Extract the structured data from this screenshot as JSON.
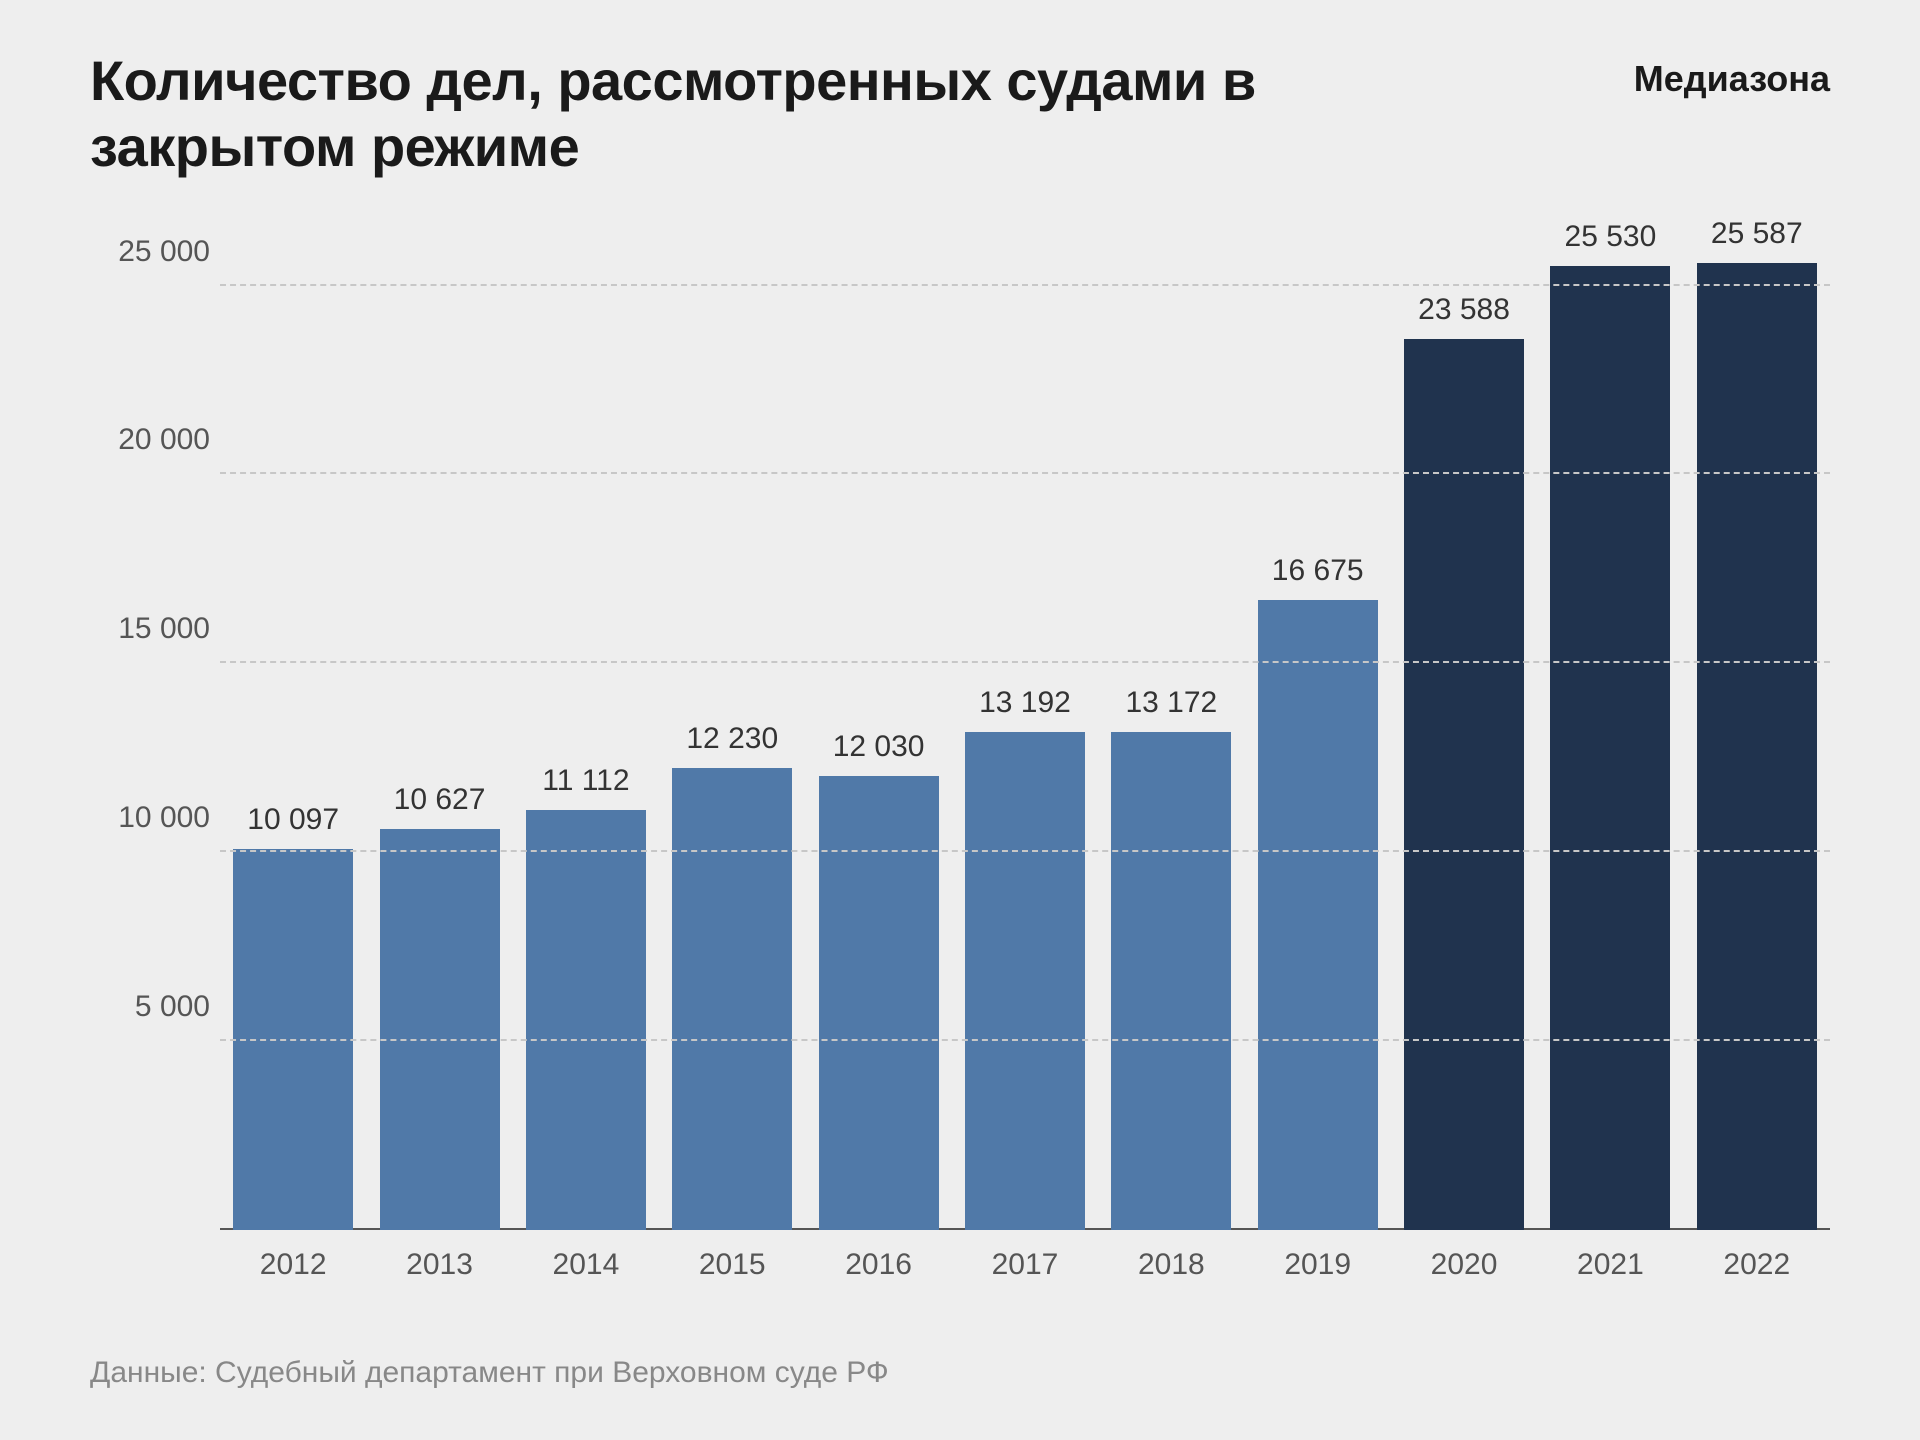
{
  "title": "Количество дел, рассмотренных судами в закрытом режиме",
  "brand": "Медиазона",
  "source": "Данные: Судебный департамент при Верховном суде РФ",
  "chart": {
    "type": "bar",
    "background_color": "#eeeeee",
    "grid_color": "#c7c7c7",
    "axis_color": "#555555",
    "text_color": "#333333",
    "title_fontsize": 56,
    "label_fontsize": 30,
    "bar_width_ratio": 0.82,
    "y": {
      "min": 0,
      "max": 27000,
      "ticks": [
        5000,
        10000,
        15000,
        20000,
        25000
      ],
      "tick_labels": [
        "5 000",
        "10 000",
        "15 000",
        "20 000",
        "25 000"
      ]
    },
    "colors": {
      "light": "#5079a8",
      "dark": "#20334e"
    },
    "data": [
      {
        "x": "2012",
        "value": 10097,
        "label": "10 097",
        "color": "light"
      },
      {
        "x": "2013",
        "value": 10627,
        "label": "10 627",
        "color": "light"
      },
      {
        "x": "2014",
        "value": 11112,
        "label": "11 112",
        "color": "light"
      },
      {
        "x": "2015",
        "value": 12230,
        "label": "12 230",
        "color": "light"
      },
      {
        "x": "2016",
        "value": 12030,
        "label": "12 030",
        "color": "light"
      },
      {
        "x": "2017",
        "value": 13192,
        "label": "13 192",
        "color": "light"
      },
      {
        "x": "2018",
        "value": 13172,
        "label": "13 172",
        "color": "light"
      },
      {
        "x": "2019",
        "value": 16675,
        "label": "16 675",
        "color": "light"
      },
      {
        "x": "2020",
        "value": 23588,
        "label": "23 588",
        "color": "dark"
      },
      {
        "x": "2021",
        "value": 25530,
        "label": "25 530",
        "color": "dark"
      },
      {
        "x": "2022",
        "value": 25587,
        "label": "25 587",
        "color": "dark"
      }
    ]
  }
}
